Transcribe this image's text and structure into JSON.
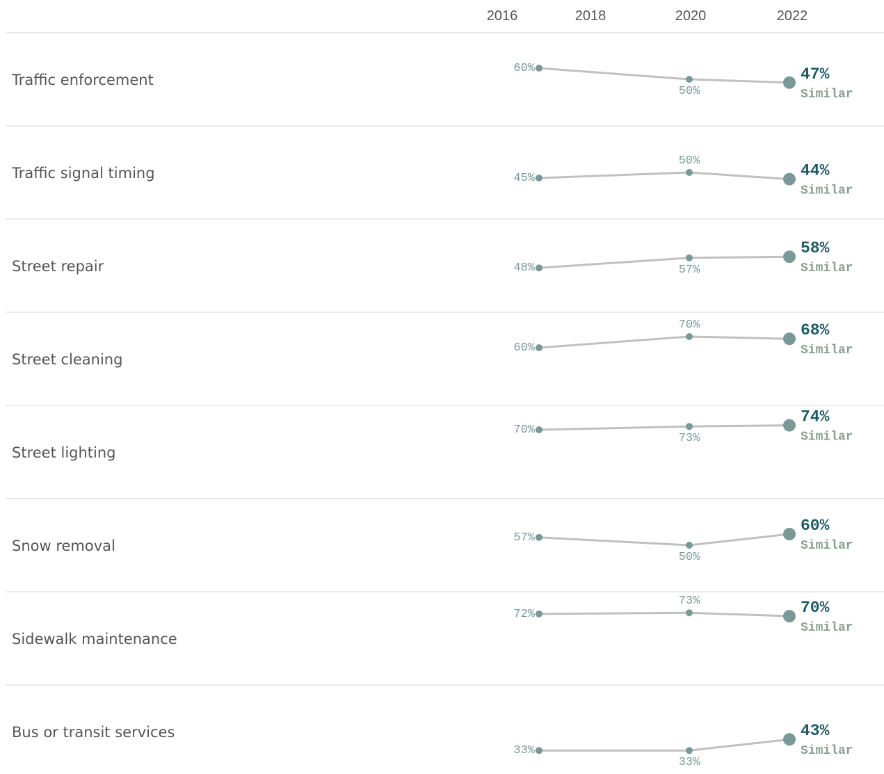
{
  "chart_data": {
    "type": "line",
    "x_ticks": [
      "2016",
      "2018",
      "2020",
      "2022"
    ],
    "x": [
      2017,
      2020,
      2022
    ],
    "rows": [
      {
        "label": "Traffic enforcement",
        "values": [
          60,
          50,
          47
        ],
        "value_labels": [
          "60%",
          "50%",
          "47%"
        ],
        "status": "Similar"
      },
      {
        "label": "Traffic signal timing",
        "values": [
          45,
          50,
          44
        ],
        "value_labels": [
          "45%",
          "50%",
          "44%"
        ],
        "status": "Similar"
      },
      {
        "label": "Street repair",
        "values": [
          48,
          57,
          58
        ],
        "value_labels": [
          "48%",
          "57%",
          "58%"
        ],
        "status": "Similar"
      },
      {
        "label": "Street cleaning",
        "values": [
          60,
          70,
          68
        ],
        "value_labels": [
          "60%",
          "70%",
          "68%"
        ],
        "status": "Similar"
      },
      {
        "label": "Street lighting",
        "values": [
          70,
          73,
          74
        ],
        "value_labels": [
          "70%",
          "73%",
          "74%"
        ],
        "status": "Similar"
      },
      {
        "label": "Snow removal",
        "values": [
          57,
          50,
          60
        ],
        "value_labels": [
          "57%",
          "50%",
          "60%"
        ],
        "status": "Similar"
      },
      {
        "label": "Sidewalk maintenance",
        "values": [
          72,
          73,
          70
        ],
        "value_labels": [
          "72%",
          "73%",
          "70%"
        ],
        "status": "Similar"
      },
      {
        "label": "Bus or transit services",
        "values": [
          33,
          33,
          43
        ],
        "value_labels": [
          "33%",
          "33%",
          "43%"
        ],
        "status": "Similar"
      }
    ],
    "colors": {
      "line": "#c0c0c0",
      "point": "#7a9898",
      "latest_value": "#1f5a66",
      "status": "#8a9f92",
      "divider": "#dddddd"
    }
  }
}
